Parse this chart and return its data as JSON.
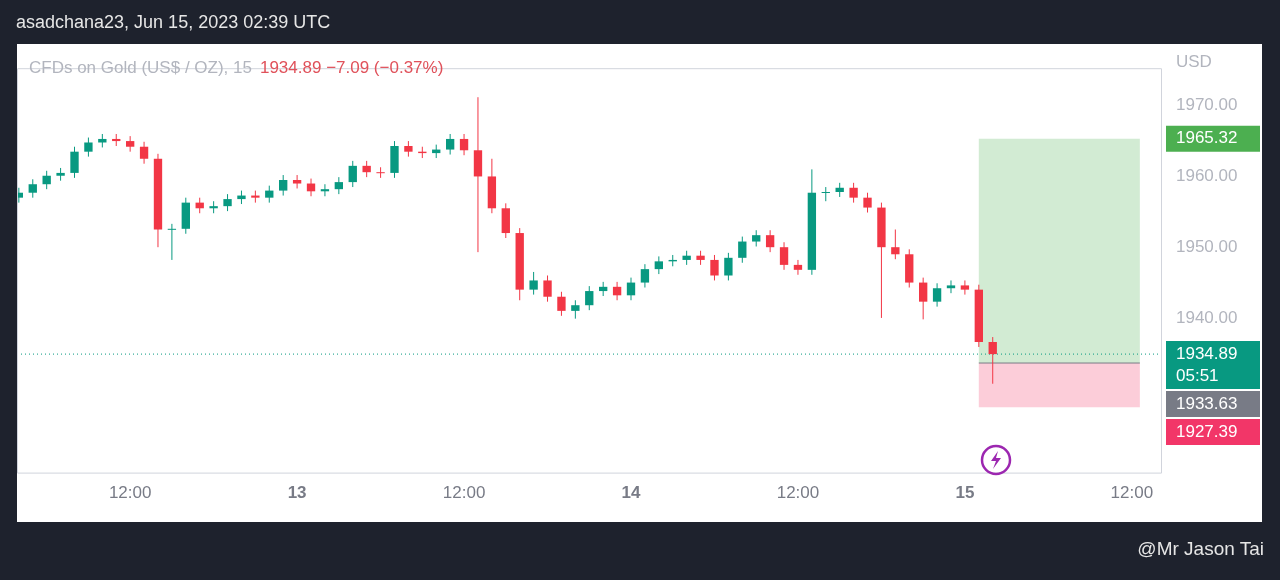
{
  "chart_data": {
    "type": "candlestick",
    "title": "CFDs on Gold (US$ / OZ), 15",
    "subtitle": "1934.89  −7.09 (−0.37%)",
    "ylabel": "USD",
    "annotations": [
      "asadchana23, Jun 15, 2023 02:39 UTC",
      "@Mr Jason Tai"
    ],
    "x": [
      "2023-06-12T04:00",
      "2023-06-12T05:00",
      "2023-06-12T06:00",
      "2023-06-12T07:00",
      "2023-06-12T08:00",
      "2023-06-12T09:00",
      "2023-06-12T10:00",
      "2023-06-12T11:00",
      "2023-06-12T12:00",
      "2023-06-12T13:00",
      "2023-06-12T14:00",
      "2023-06-12T15:00",
      "2023-06-12T16:00",
      "2023-06-12T17:00",
      "2023-06-12T18:00",
      "2023-06-12T19:00",
      "2023-06-12T20:00",
      "2023-06-12T21:00",
      "2023-06-12T22:00",
      "2023-06-12T23:00",
      "2023-06-13T00:00",
      "2023-06-13T01:00",
      "2023-06-13T02:00",
      "2023-06-13T03:00",
      "2023-06-13T04:00",
      "2023-06-13T05:00",
      "2023-06-13T06:00",
      "2023-06-13T07:00",
      "2023-06-13T08:00",
      "2023-06-13T09:00",
      "2023-06-13T10:00",
      "2023-06-13T11:00",
      "2023-06-13T12:00",
      "2023-06-13T13:00",
      "2023-06-13T14:00",
      "2023-06-13T15:00",
      "2023-06-13T16:00",
      "2023-06-13T17:00",
      "2023-06-13T18:00",
      "2023-06-13T19:00",
      "2023-06-13T20:00",
      "2023-06-13T21:00",
      "2023-06-13T22:00",
      "2023-06-13T23:00",
      "2023-06-14T00:00",
      "2023-06-14T01:00",
      "2023-06-14T02:00",
      "2023-06-14T03:00",
      "2023-06-14T04:00",
      "2023-06-14T05:00",
      "2023-06-14T06:00",
      "2023-06-14T07:00",
      "2023-06-14T08:00",
      "2023-06-14T09:00",
      "2023-06-14T10:00",
      "2023-06-14T11:00",
      "2023-06-14T12:00",
      "2023-06-14T13:00",
      "2023-06-14T14:00",
      "2023-06-14T15:00",
      "2023-06-14T16:00",
      "2023-06-14T17:00",
      "2023-06-14T18:00",
      "2023-06-14T19:00",
      "2023-06-14T20:00",
      "2023-06-14T21:00",
      "2023-06-14T22:00",
      "2023-06-14T23:00",
      "2023-06-15T00:00",
      "2023-06-15T01:00",
      "2023-06-15T02:00"
    ],
    "ohlc": [
      [
        1957.0,
        1958.4,
        1956.3,
        1957.7
      ],
      [
        1957.7,
        1959.6,
        1957.0,
        1958.9
      ],
      [
        1958.9,
        1960.8,
        1958.2,
        1960.1
      ],
      [
        1960.1,
        1961.2,
        1959.4,
        1960.5
      ],
      [
        1960.5,
        1964.2,
        1959.8,
        1963.5
      ],
      [
        1963.5,
        1965.5,
        1962.8,
        1964.8
      ],
      [
        1964.8,
        1966.0,
        1964.1,
        1965.3
      ],
      [
        1965.3,
        1966.0,
        1964.3,
        1965.0
      ],
      [
        1965.0,
        1965.7,
        1963.5,
        1964.2
      ],
      [
        1964.2,
        1964.9,
        1961.8,
        1962.5
      ],
      [
        1962.5,
        1963.2,
        1950.0,
        1952.5
      ],
      [
        1952.5,
        1953.3,
        1948.2,
        1952.6
      ],
      [
        1952.6,
        1957.0,
        1951.9,
        1956.3
      ],
      [
        1956.3,
        1957.0,
        1954.8,
        1955.5
      ],
      [
        1955.5,
        1956.5,
        1954.8,
        1955.8
      ],
      [
        1955.8,
        1957.5,
        1955.1,
        1956.8
      ],
      [
        1956.8,
        1958.0,
        1956.1,
        1957.3
      ],
      [
        1957.3,
        1958.0,
        1956.3,
        1957.0
      ],
      [
        1957.0,
        1958.7,
        1956.3,
        1958.0
      ],
      [
        1958.0,
        1960.2,
        1957.3,
        1959.5
      ],
      [
        1959.5,
        1960.2,
        1958.3,
        1959.0
      ],
      [
        1959.0,
        1959.7,
        1957.2,
        1957.9
      ],
      [
        1957.9,
        1958.9,
        1957.2,
        1958.2
      ],
      [
        1958.2,
        1959.9,
        1957.5,
        1959.2
      ],
      [
        1959.2,
        1962.2,
        1958.5,
        1961.5
      ],
      [
        1961.5,
        1962.2,
        1959.9,
        1960.6
      ],
      [
        1960.6,
        1961.3,
        1959.8,
        1960.5
      ],
      [
        1960.5,
        1965.0,
        1959.8,
        1964.3
      ],
      [
        1964.3,
        1965.0,
        1962.8,
        1963.5
      ],
      [
        1963.5,
        1964.2,
        1962.6,
        1963.3
      ],
      [
        1963.3,
        1964.5,
        1962.6,
        1963.8
      ],
      [
        1963.8,
        1966.0,
        1963.1,
        1965.3
      ],
      [
        1965.3,
        1966.0,
        1963.0,
        1963.7
      ],
      [
        1963.7,
        1971.2,
        1949.3,
        1960.0
      ],
      [
        1960.0,
        1962.5,
        1954.8,
        1955.5
      ],
      [
        1955.5,
        1956.2,
        1951.3,
        1952.0
      ],
      [
        1952.0,
        1952.7,
        1942.5,
        1944.0
      ],
      [
        1944.0,
        1946.5,
        1943.3,
        1945.3
      ],
      [
        1945.3,
        1946.0,
        1942.3,
        1943.0
      ],
      [
        1943.0,
        1943.7,
        1940.3,
        1941.0
      ],
      [
        1941.0,
        1942.5,
        1939.9,
        1941.8
      ],
      [
        1941.8,
        1944.5,
        1941.1,
        1943.8
      ],
      [
        1943.8,
        1945.1,
        1943.1,
        1944.4
      ],
      [
        1944.4,
        1945.1,
        1942.5,
        1943.2
      ],
      [
        1943.2,
        1945.7,
        1942.5,
        1945.0
      ],
      [
        1945.0,
        1947.6,
        1944.3,
        1946.9
      ],
      [
        1946.9,
        1948.7,
        1946.2,
        1948.0
      ],
      [
        1948.0,
        1948.9,
        1947.3,
        1948.2
      ],
      [
        1948.2,
        1949.5,
        1947.5,
        1948.8
      ],
      [
        1948.8,
        1949.5,
        1947.5,
        1948.2
      ],
      [
        1948.2,
        1948.9,
        1945.3,
        1946.0
      ],
      [
        1946.0,
        1949.2,
        1945.3,
        1948.5
      ],
      [
        1948.5,
        1951.5,
        1947.8,
        1950.8
      ],
      [
        1950.8,
        1952.4,
        1950.1,
        1951.7
      ],
      [
        1951.7,
        1952.4,
        1949.3,
        1950.0
      ],
      [
        1950.0,
        1950.7,
        1946.8,
        1947.5
      ],
      [
        1947.5,
        1948.2,
        1946.1,
        1946.8
      ],
      [
        1946.8,
        1961.0,
        1946.1,
        1957.7
      ],
      [
        1957.7,
        1958.5,
        1956.5,
        1957.8
      ],
      [
        1957.8,
        1959.1,
        1957.1,
        1958.4
      ],
      [
        1958.4,
        1959.1,
        1956.3,
        1957.0
      ],
      [
        1957.0,
        1957.7,
        1954.9,
        1955.6
      ],
      [
        1955.6,
        1956.3,
        1940.0,
        1950.0
      ],
      [
        1950.0,
        1952.5,
        1948.3,
        1949.0
      ],
      [
        1949.0,
        1949.7,
        1944.3,
        1945.0
      ],
      [
        1945.0,
        1945.7,
        1939.8,
        1942.3
      ],
      [
        1942.3,
        1944.9,
        1941.6,
        1944.2
      ],
      [
        1944.2,
        1945.3,
        1943.5,
        1944.6
      ],
      [
        1944.6,
        1945.3,
        1943.3,
        1944.0
      ],
      [
        1944.0,
        1944.7,
        1935.9,
        1936.6
      ],
      [
        1936.6,
        1937.3,
        1930.7,
        1934.89
      ]
    ],
    "xlim": [
      "2023-06-12T03:52",
      "2023-06-15T14:10"
    ],
    "xticks": [
      {
        "value": "2023-06-12T12:00",
        "label": "12:00"
      },
      {
        "value": "2023-06-13",
        "label": "13"
      },
      {
        "value": "2023-06-13T12:00",
        "label": "12:00"
      },
      {
        "value": "2023-06-14",
        "label": "14"
      },
      {
        "value": "2023-06-14T12:00",
        "label": "12:00"
      },
      {
        "value": "2023-06-15",
        "label": "15"
      },
      {
        "value": "2023-06-15T12:00",
        "label": "12:00"
      }
    ],
    "ylim": [
      1918,
      1975.3
    ],
    "yticks": [
      {
        "value": 1940,
        "label": "1940.00"
      },
      {
        "value": 1950,
        "label": "1950.00"
      },
      {
        "value": 1960,
        "label": "1960.00"
      },
      {
        "value": 1970,
        "label": "1970.00"
      }
    ],
    "ref_lines": [
      {
        "axis": "y",
        "value": 1934.89,
        "label": "1934.89\n05:51",
        "color": "#089981",
        "line_style": "dotted"
      },
      {
        "axis": "y",
        "value": 1933.63,
        "label": "1933.63",
        "color": "#787b86",
        "line_style": "solid"
      }
    ],
    "bands": [
      {
        "axis": "y",
        "from": 1933.63,
        "to": 1965.32,
        "label": "1965.32",
        "color": "#4caf50"
      },
      {
        "axis": "y",
        "from": 1933.63,
        "to": 1927.39,
        "label": "1927.39",
        "color": "#f23668"
      }
    ],
    "grid": false,
    "legend": false
  }
}
